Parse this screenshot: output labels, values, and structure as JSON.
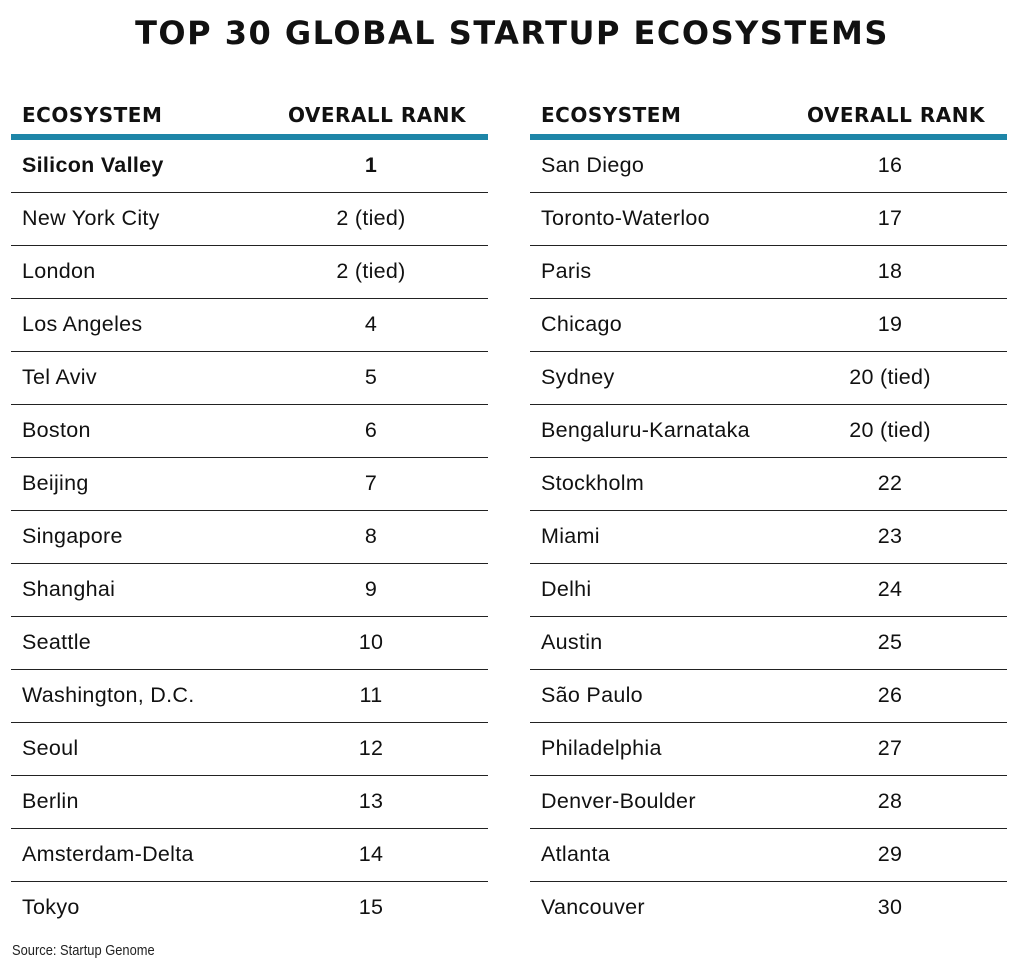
{
  "title": "TOP 30 GLOBAL STARTUP ECOSYSTEMS",
  "headers": {
    "ecosystem": "ECOSYSTEM",
    "rank": "OVERALL RANK"
  },
  "accent_color": "#1e86a8",
  "left_rows": [
    {
      "name": "Silicon Valley",
      "rank": "1"
    },
    {
      "name": "New York City",
      "rank": "2 (tied)"
    },
    {
      "name": "London",
      "rank": "2 (tied)"
    },
    {
      "name": "Los Angeles",
      "rank": "4"
    },
    {
      "name": "Tel Aviv",
      "rank": "5"
    },
    {
      "name": "Boston",
      "rank": "6"
    },
    {
      "name": "Beijing",
      "rank": "7"
    },
    {
      "name": "Singapore",
      "rank": "8"
    },
    {
      "name": "Shanghai",
      "rank": "9"
    },
    {
      "name": "Seattle",
      "rank": "10"
    },
    {
      "name": "Washington, D.C.",
      "rank": "11"
    },
    {
      "name": "Seoul",
      "rank": "12"
    },
    {
      "name": "Berlin",
      "rank": "13"
    },
    {
      "name": "Amsterdam-Delta",
      "rank": "14"
    },
    {
      "name": "Tokyo",
      "rank": "15"
    }
  ],
  "right_rows": [
    {
      "name": "San Diego",
      "rank": "16"
    },
    {
      "name": "Toronto-Waterloo",
      "rank": "17"
    },
    {
      "name": "Paris",
      "rank": "18"
    },
    {
      "name": "Chicago",
      "rank": "19"
    },
    {
      "name": "Sydney",
      "rank": "20 (tied)"
    },
    {
      "name": "Bengaluru-Karnataka",
      "rank": "20 (tied)"
    },
    {
      "name": "Stockholm",
      "rank": "22"
    },
    {
      "name": "Miami",
      "rank": "23"
    },
    {
      "name": "Delhi",
      "rank": "24"
    },
    {
      "name": "Austin",
      "rank": "25"
    },
    {
      "name": "São Paulo",
      "rank": "26"
    },
    {
      "name": "Philadelphia",
      "rank": "27"
    },
    {
      "name": "Denver-Boulder",
      "rank": "28"
    },
    {
      "name": "Atlanta",
      "rank": "29"
    },
    {
      "name": "Vancouver",
      "rank": "30"
    }
  ],
  "source": "Source: Startup Genome"
}
